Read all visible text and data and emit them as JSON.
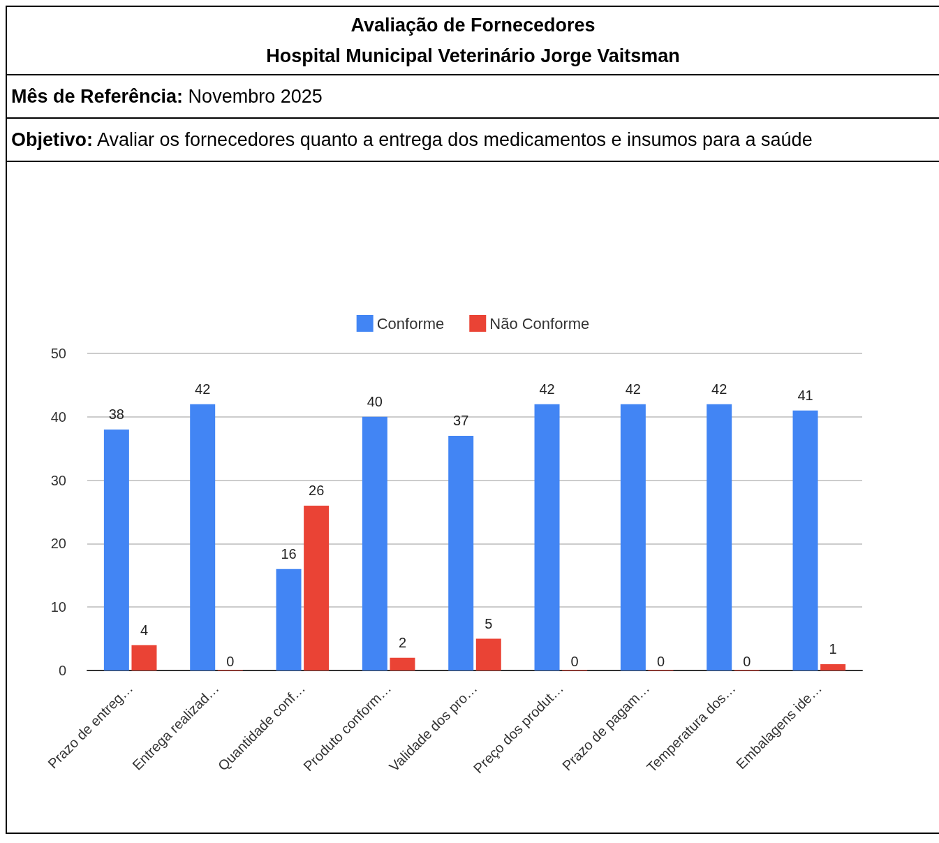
{
  "chart_data": {
    "type": "bar",
    "title": "Avaliação de Fornecedores",
    "subtitle": "Hospital Municipal Veterinário Jorge Vaitsman",
    "annotations": [
      "Mês de Referência: Novembro 2025",
      "Objetivo: Avaliar os fornecedores quanto a entrega dos medicamentos e insumos para a saúde"
    ],
    "categories": [
      "Prazo de entreg…",
      "Entrega realizad…",
      "Quantidade conf…",
      "Produto conform…",
      "Validade dos pro…",
      "Preço dos produt…",
      "Prazo de pagam…",
      "Temperatura dos…",
      "Embalagens ide…"
    ],
    "series": [
      {
        "name": "Conforme",
        "color": "#4285f4",
        "values": [
          38,
          42,
          16,
          40,
          37,
          42,
          42,
          42,
          41
        ]
      },
      {
        "name": "Não Conforme",
        "color": "#ea4335",
        "values": [
          4,
          0,
          26,
          2,
          5,
          0,
          0,
          0,
          1
        ]
      }
    ],
    "ylim": [
      0,
      50
    ],
    "yticks": [
      0,
      10,
      20,
      30,
      40,
      50
    ],
    "grid": "y",
    "legend": "top",
    "data_labels": true
  }
}
